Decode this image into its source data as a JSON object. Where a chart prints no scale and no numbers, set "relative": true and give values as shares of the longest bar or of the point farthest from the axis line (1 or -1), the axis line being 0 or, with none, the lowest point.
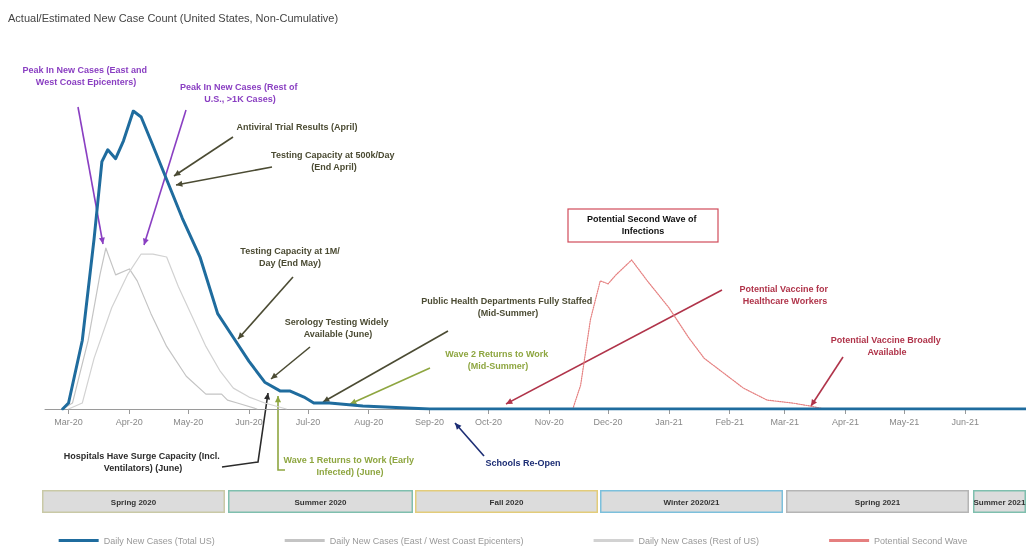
{
  "chart_data": {
    "type": "line",
    "title": "Actual/Estimated New Case Count (United States, Non-Cumulative)",
    "relative": true,
    "marker": "none",
    "legend": "bottom",
    "xlim": [
      "2020-02-18",
      "2021-07-02"
    ],
    "xticks": [
      {
        "value": "2020-03-01",
        "label": "Mar-20"
      },
      {
        "value": "2020-04-01",
        "label": "Apr-20"
      },
      {
        "value": "2020-05-01",
        "label": "May-20"
      },
      {
        "value": "2020-06-01",
        "label": "Jun-20"
      },
      {
        "value": "2020-07-01",
        "label": "Jul-20"
      },
      {
        "value": "2020-08-01",
        "label": "Aug-20"
      },
      {
        "value": "2020-09-01",
        "label": "Sep-20"
      },
      {
        "value": "2020-10-01",
        "label": "Oct-20"
      },
      {
        "value": "2020-11-01",
        "label": "Nov-20"
      },
      {
        "value": "2020-12-01",
        "label": "Dec-20"
      },
      {
        "value": "2021-01-01",
        "label": "Jan-21"
      },
      {
        "value": "2021-02-01",
        "label": "Feb-21"
      },
      {
        "value": "2021-03-01",
        "label": "Mar-21"
      },
      {
        "value": "2021-04-01",
        "label": "Apr-21"
      },
      {
        "value": "2021-05-01",
        "label": "May-21"
      },
      {
        "value": "2021-06-01",
        "label": "Jun-21"
      }
    ],
    "series": [
      {
        "name": "Daily New Cases (Total US)",
        "color": "#1f6c9e",
        "x": [
          "2020-02-27",
          "2020-03-01",
          "2020-03-08",
          "2020-03-14",
          "2020-03-18",
          "2020-03-21",
          "2020-03-25",
          "2020-03-29",
          "2020-04-03",
          "2020-04-07",
          "2020-04-12",
          "2020-04-20",
          "2020-04-28",
          "2020-05-07",
          "2020-05-16",
          "2020-05-24",
          "2020-06-01",
          "2020-06-09",
          "2020-06-17",
          "2020-06-22",
          "2020-06-29",
          "2020-07-04",
          "2020-07-12",
          "2020-07-29",
          "2020-09-01",
          "2021-07-02"
        ],
        "values": [
          0,
          0.02,
          0.23,
          0.57,
          0.83,
          0.87,
          0.84,
          0.9,
          1,
          0.98,
          0.9,
          0.77,
          0.64,
          0.51,
          0.32,
          0.24,
          0.16,
          0.09,
          0.06,
          0.06,
          0.04,
          0.02,
          0.02,
          0.01,
          0,
          0
        ]
      },
      {
        "name": "Daily New Cases (East / West Coast Epicenters)",
        "color": "#c4c4c4",
        "x": [
          "2020-02-27",
          "2020-03-03",
          "2020-03-11",
          "2020-03-17",
          "2020-03-20",
          "2020-03-25",
          "2020-04-01",
          "2020-04-05",
          "2020-04-12",
          "2020-04-20",
          "2020-04-30",
          "2020-05-10",
          "2020-05-18",
          "2020-05-21",
          "2020-05-26",
          "2020-06-05"
        ],
        "values": [
          0,
          0.02,
          0.23,
          0.45,
          0.54,
          0.45,
          0.47,
          0.43,
          0.32,
          0.21,
          0.11,
          0.05,
          0.05,
          0.03,
          0.02,
          0
        ]
      },
      {
        "name": "Daily New Cases (Rest of US)",
        "color": "#d2d2d2",
        "x": [
          "2020-03-01",
          "2020-03-08",
          "2020-03-14",
          "2020-03-23",
          "2020-03-31",
          "2020-04-07",
          "2020-04-13",
          "2020-04-20",
          "2020-04-26",
          "2020-05-03",
          "2020-05-10",
          "2020-05-17",
          "2020-05-24",
          "2020-06-01",
          "2020-06-09",
          "2020-06-20"
        ],
        "values": [
          0,
          0.02,
          0.17,
          0.34,
          0.45,
          0.52,
          0.52,
          0.51,
          0.41,
          0.31,
          0.21,
          0.13,
          0.07,
          0.04,
          0.02,
          0
        ]
      },
      {
        "name": "Potential Second Wave",
        "color": "#e57f7f",
        "line_style": "dotted",
        "x": [
          "2020-11-13",
          "2020-11-17",
          "2020-11-22",
          "2020-11-27",
          "2020-12-01",
          "2020-12-05",
          "2020-12-13",
          "2020-12-21",
          "2021-01-01",
          "2021-01-11",
          "2021-01-19",
          "2021-01-29",
          "2021-02-08",
          "2021-02-20",
          "2021-03-05",
          "2021-03-14",
          "2021-03-21"
        ],
        "values": [
          0,
          0.08,
          0.3,
          0.43,
          0.42,
          0.45,
          0.5,
          0.43,
          0.34,
          0.24,
          0.17,
          0.12,
          0.07,
          0.03,
          0.02,
          0.01,
          0
        ]
      }
    ],
    "annotations": [
      "Peak In New Cases (East and West Coast Epicenters)",
      "Peak In New Cases (Rest of U.S., >1K Cases)",
      "Antiviral Trial Results (April)",
      "Testing Capacity at 500k/Day (End April)",
      "Testing Capacity at 1M/Day (End May)",
      "Serology Testing Widely Available (June)",
      "Public Health Departments Fully Staffed (Mid-Summer)",
      "Wave 2 Returns to Work (Mid-Summer)",
      "Hospitals Have Surge Capacity (Incl. Ventilators) (June)",
      "Wave 1 Returns to Work (Early Infected) (June)",
      "Schools Re-Open",
      "Potential Second Wave of Infections",
      "Potential Vaccine for Healthcare Workers",
      "Potential Vaccine Broadly Available",
      "Spring 2020",
      "Summer 2020",
      "Fall 2020",
      "Winter 2020/21",
      "Spring 2021",
      "Summer 2021"
    ]
  }
}
